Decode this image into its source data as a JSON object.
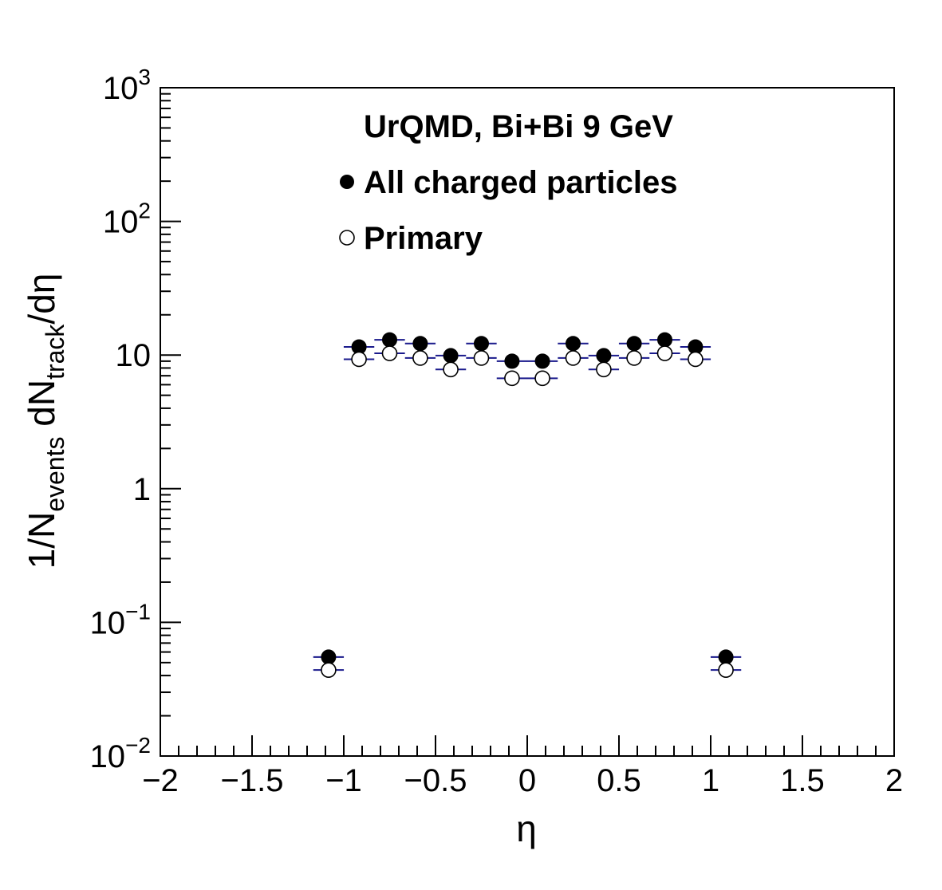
{
  "chart_data": {
    "type": "scatter",
    "title": "",
    "xlabel": "η",
    "ylabel": {
      "base": "1/N",
      "sub1": "events",
      "mid": " dN",
      "sub2": "track",
      "tail": "/dη"
    },
    "xlim": [
      -2,
      2
    ],
    "ylim": [
      0.01,
      1000
    ],
    "yscale": "log",
    "grid": false,
    "x_ticks": [
      {
        "value": -2,
        "label": "−2"
      },
      {
        "value": -1.5,
        "label": "−1.5"
      },
      {
        "value": -1,
        "label": "−1"
      },
      {
        "value": -0.5,
        "label": "−0.5"
      },
      {
        "value": 0,
        "label": "0"
      },
      {
        "value": 0.5,
        "label": "0.5"
      },
      {
        "value": 1,
        "label": "1"
      },
      {
        "value": 1.5,
        "label": "1.5"
      },
      {
        "value": 2,
        "label": "2"
      }
    ],
    "y_ticks": [
      {
        "value": 0.01,
        "base": "10",
        "exp": "−2"
      },
      {
        "value": 0.1,
        "base": "10",
        "exp": "−1"
      },
      {
        "value": 1,
        "base": "1",
        "exp": ""
      },
      {
        "value": 10,
        "base": "10",
        "exp": ""
      },
      {
        "value": 100,
        "base": "10",
        "exp": "2"
      },
      {
        "value": 1000,
        "base": "10",
        "exp": "3"
      }
    ],
    "x_bin_half_width": 0.0833,
    "annotation": "UrQMD, Bi+Bi 9 GeV",
    "legend_position": "top-center",
    "series": [
      {
        "name": "All charged particles",
        "marker": "filled-circle",
        "color": "#000000",
        "x": [
          -1.083,
          -0.917,
          -0.75,
          -0.583,
          -0.417,
          -0.25,
          -0.083,
          0.083,
          0.25,
          0.417,
          0.583,
          0.75,
          0.917,
          1.083
        ],
        "y": [
          0.055,
          11.5,
          13.0,
          12.2,
          9.9,
          12.2,
          9.0,
          9.0,
          12.2,
          9.9,
          12.2,
          13.0,
          11.5,
          0.055
        ]
      },
      {
        "name": "Primary",
        "marker": "open-circle",
        "color": "#000000",
        "x": [
          -1.083,
          -0.917,
          -0.75,
          -0.583,
          -0.417,
          -0.25,
          -0.083,
          0.083,
          0.25,
          0.417,
          0.583,
          0.75,
          0.917,
          1.083
        ],
        "y": [
          0.044,
          9.3,
          10.3,
          9.5,
          7.8,
          9.5,
          6.7,
          6.7,
          9.5,
          7.8,
          9.5,
          10.3,
          9.3,
          0.044
        ]
      }
    ],
    "errorbar_color": "#1a1a8c"
  }
}
